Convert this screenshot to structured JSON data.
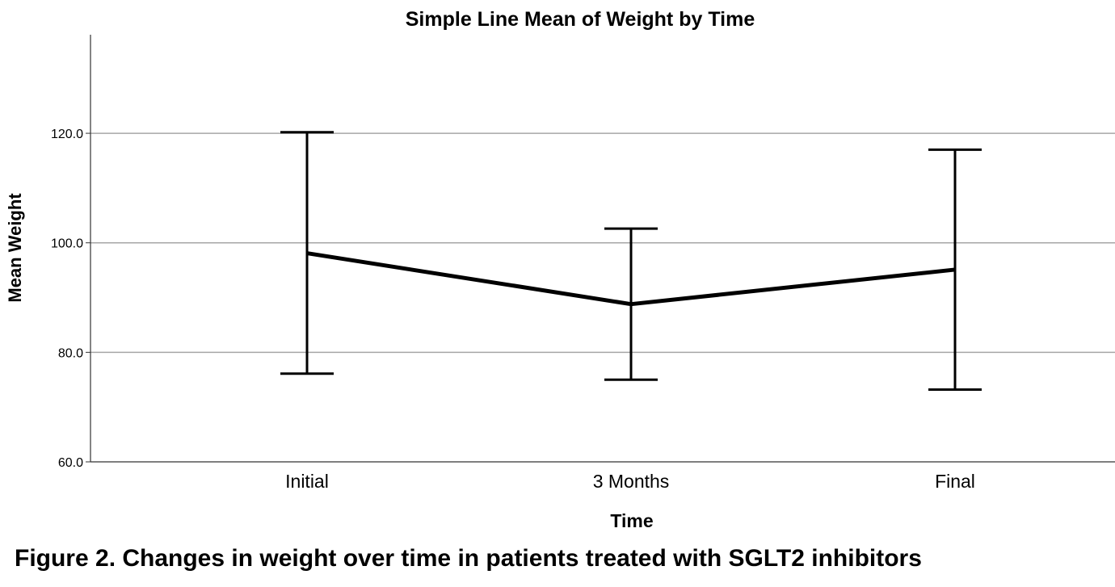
{
  "chart_data": {
    "type": "line",
    "title": "Simple Line Mean of Weight by Time",
    "xlabel": "Time",
    "ylabel": "Mean Weight",
    "categories": [
      "Initial",
      "3 Months",
      "Final"
    ],
    "series": [
      {
        "values": [
          98.1,
          88.8,
          95.1
        ],
        "error_low": [
          76.1,
          75.0,
          73.2
        ],
        "error_high": [
          120.2,
          102.6,
          117.0
        ]
      }
    ],
    "ylim": [
      60,
      138
    ],
    "yticks": [
      60,
      80,
      100,
      120
    ],
    "ytick_labels": [
      "60.0",
      "80.0",
      "100.0",
      "120.0"
    ],
    "grid": true,
    "legend": "none",
    "colors": {
      "line": "#000000",
      "grid": "#a6a6a6",
      "axis": "#333333"
    }
  },
  "caption": "Figure 2. Changes in weight over time in patients treated with SGLT2 inhibitors"
}
